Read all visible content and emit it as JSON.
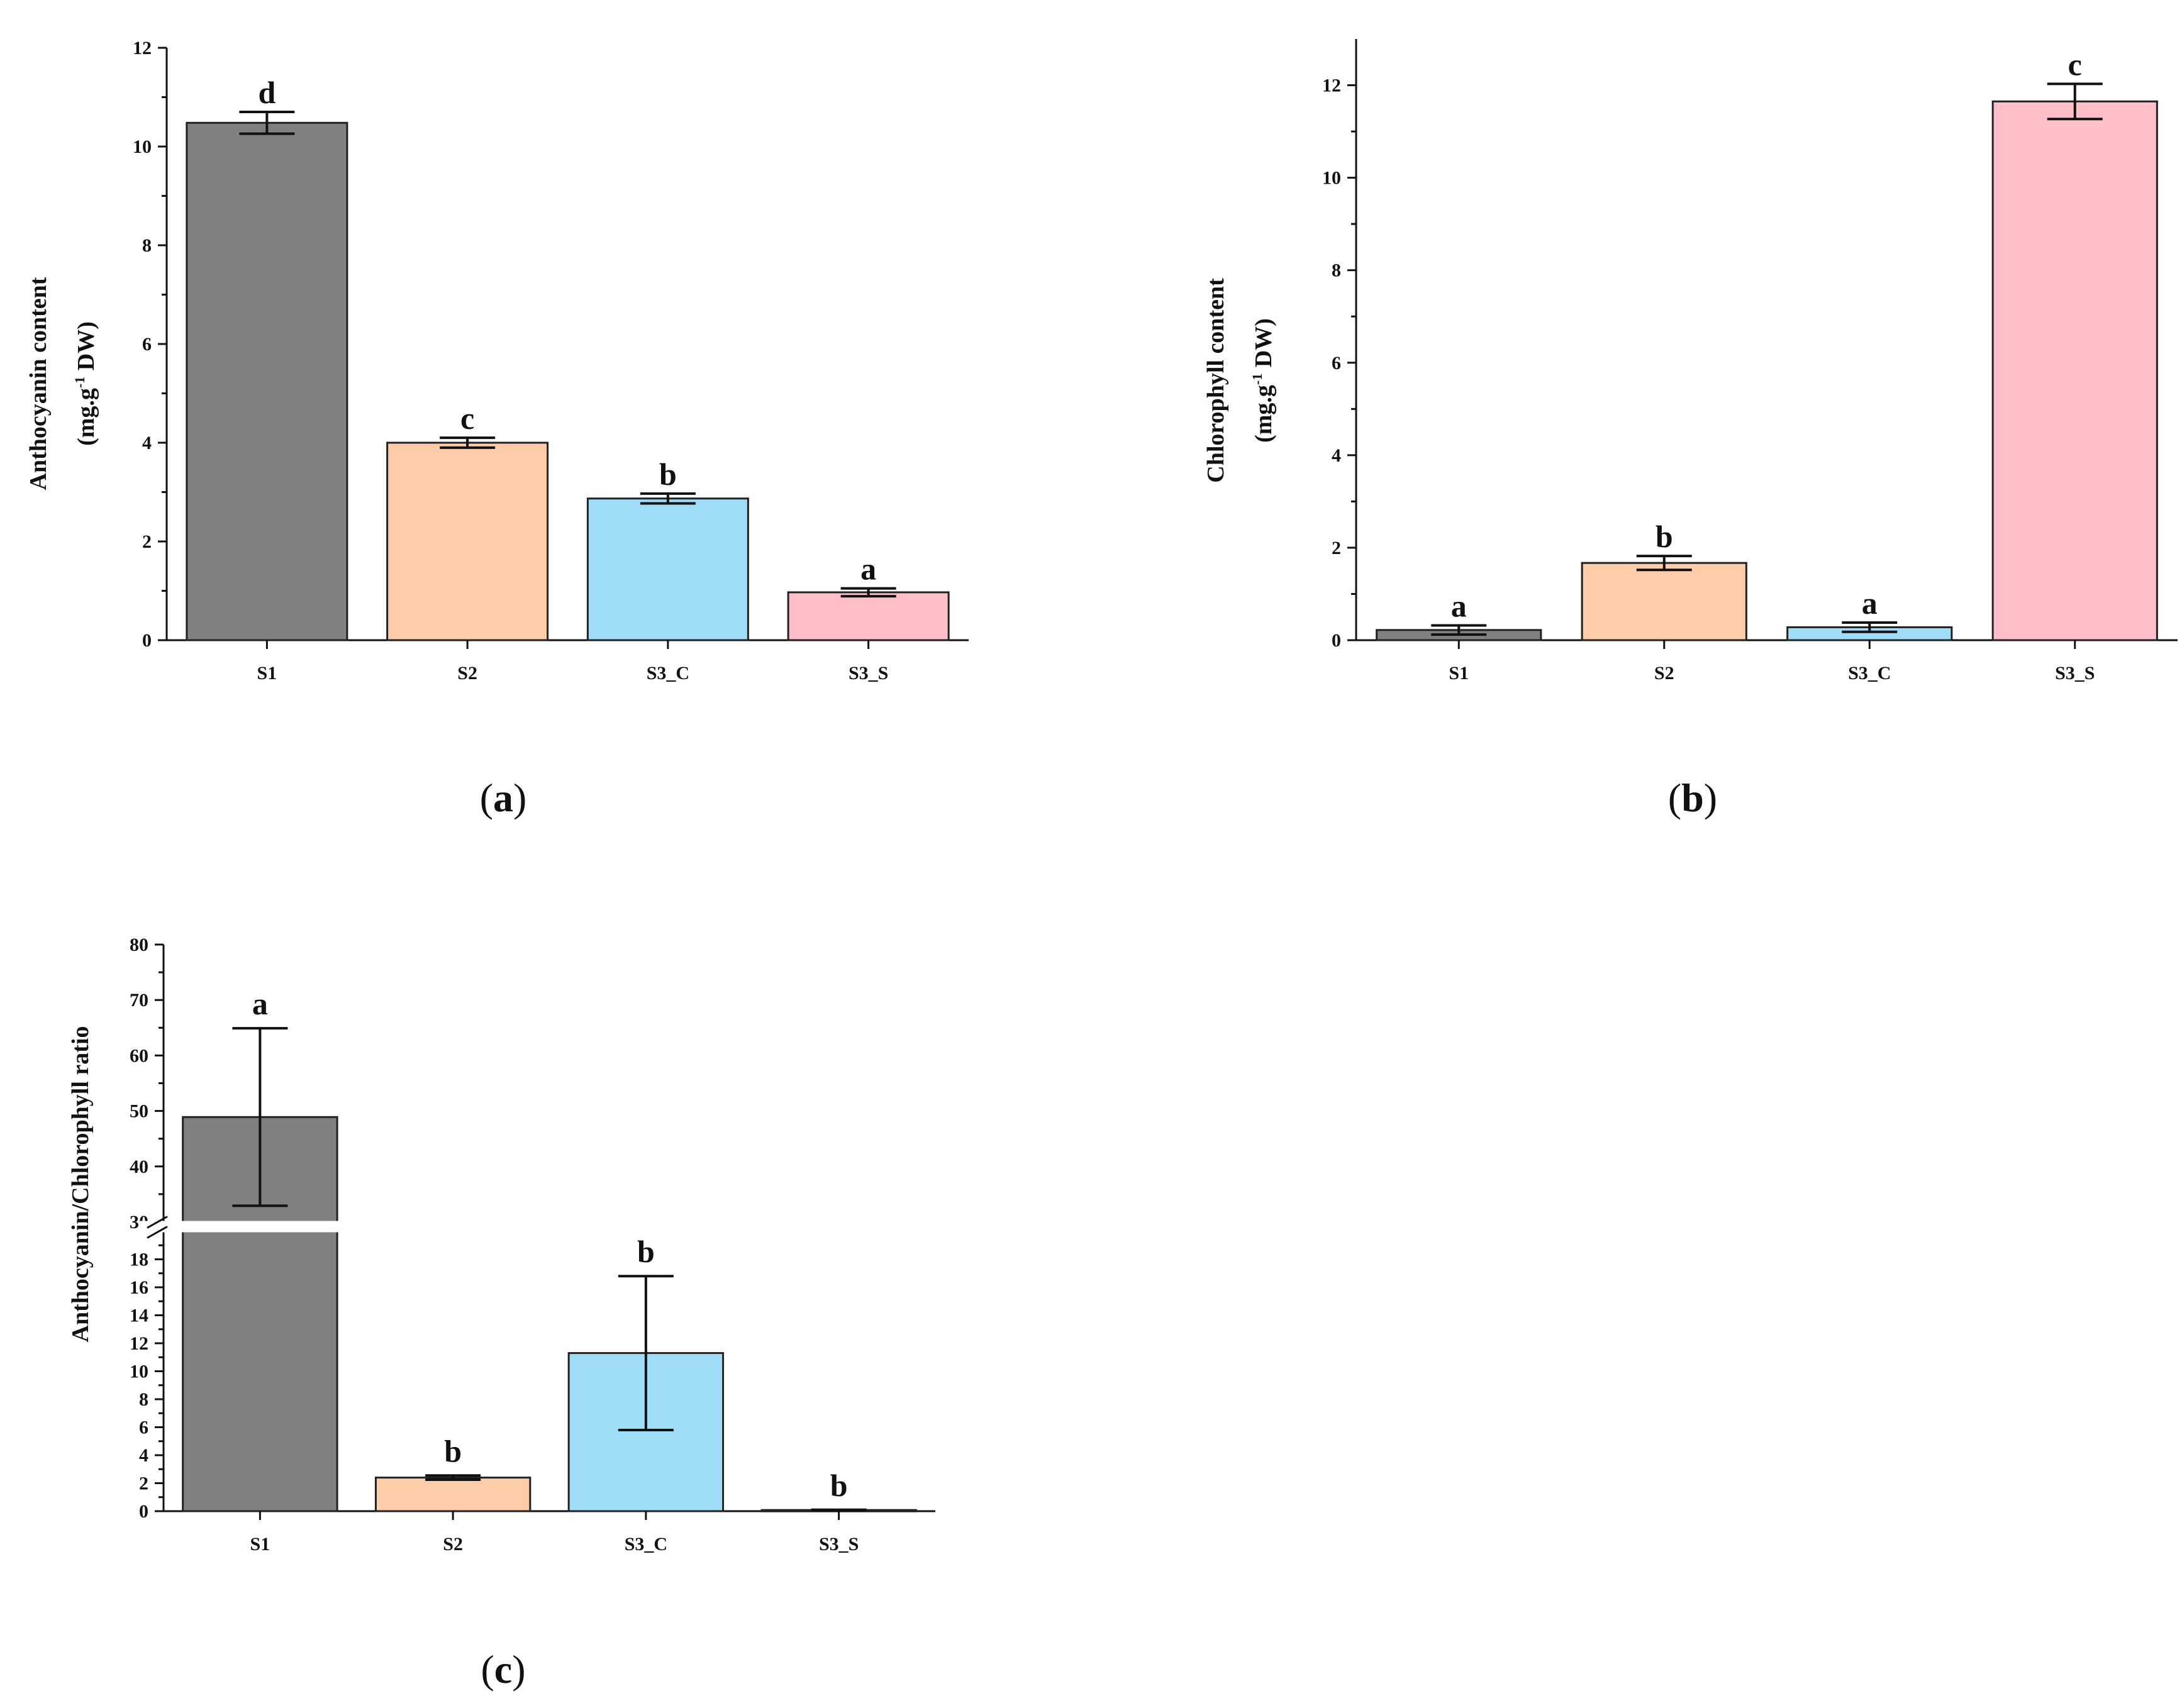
{
  "chart_data": [
    {
      "panel": "a",
      "type": "bar",
      "caption_letter": "a",
      "ylabel_line1": "Anthocyanin content",
      "ylabel_line2_pre": "(mg.g",
      "ylabel_line2_sup": "-1",
      "ylabel_line2_post": " DW)",
      "categories": [
        "S1",
        "S2",
        "S3_C",
        "S3_S"
      ],
      "values": [
        10.48,
        4.0,
        2.87,
        0.97
      ],
      "errors": [
        0.22,
        0.1,
        0.1,
        0.08
      ],
      "letters": [
        "d",
        "c",
        "b",
        "a"
      ],
      "colors": [
        "#808080",
        "#fdcca8",
        "#9fdcf7",
        "#ffbfc9"
      ],
      "ylim": [
        0,
        12
      ],
      "yticks": [
        0,
        2,
        4,
        6,
        8,
        10,
        12
      ],
      "ytick_labels": [
        "0",
        "2",
        "4",
        "6",
        "8",
        "10",
        "12"
      ]
    },
    {
      "panel": "b",
      "type": "bar",
      "caption_letter": "b",
      "ylabel_line1": "Chlorophyll content",
      "ylabel_line2_pre": "(mg.g",
      "ylabel_line2_sup": "-1",
      "ylabel_line2_post": " DW)",
      "categories": [
        "S1",
        "S2",
        "S3_C",
        "S3_S"
      ],
      "values": [
        0.22,
        1.67,
        0.28,
        11.65
      ],
      "errors": [
        0.1,
        0.15,
        0.1,
        0.38
      ],
      "letters": [
        "a",
        "b",
        "a",
        "c"
      ],
      "colors": [
        "#808080",
        "#fdcca8",
        "#9fdcf7",
        "#ffbfc9"
      ],
      "ylim": [
        0,
        13
      ],
      "yticks": [
        0,
        2,
        4,
        6,
        8,
        10,
        12
      ],
      "ytick_labels": [
        "0",
        "2",
        "4",
        "6",
        "8",
        "10",
        "12"
      ]
    },
    {
      "panel": "c",
      "type": "bar",
      "caption_letter": "c",
      "ylabel": "Anthocyanin/Chlorophyll ratio",
      "categories": [
        "S1",
        "S2",
        "S3_C",
        "S3_S"
      ],
      "values": [
        48.9,
        2.4,
        11.3,
        0.08
      ],
      "errors": [
        16.0,
        0.15,
        5.5,
        0.02
      ],
      "letters": [
        "a",
        "b",
        "b",
        "b"
      ],
      "colors": [
        "#808080",
        "#fdcca8",
        "#9fdcf7",
        "#ffbfc9"
      ],
      "axis_break": {
        "lower_range": [
          0,
          20
        ],
        "upper_range": [
          30,
          80
        ]
      },
      "yticks_lower": [
        0,
        2,
        4,
        6,
        8,
        10,
        12,
        14,
        16,
        18
      ],
      "ytick_labels_lower": [
        "0",
        "2",
        "4",
        "6",
        "8",
        "10",
        "12",
        "14",
        "16",
        "18"
      ],
      "yticks_upper": [
        30,
        40,
        50,
        60,
        70,
        80
      ],
      "ytick_labels_upper": [
        "30",
        "40",
        "50",
        "60",
        "70",
        "80"
      ]
    }
  ]
}
